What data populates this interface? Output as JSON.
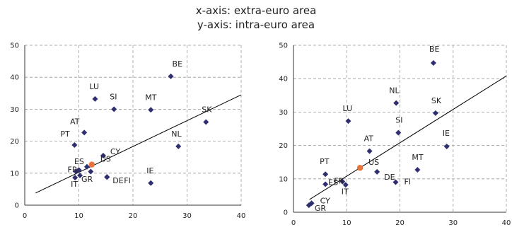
{
  "header": {
    "line1": "x-axis: extra-euro area",
    "line2": "y-axis: intra-euro area"
  },
  "colors": {
    "point": "#2f2f70",
    "us_point": "#e8743b",
    "grid": "#999999",
    "line": "#000000"
  },
  "chart_data": [
    {
      "type": "scatter",
      "xlim": [
        0,
        40
      ],
      "ylim": [
        0,
        50
      ],
      "xticks": [
        0,
        10,
        20,
        30,
        40
      ],
      "yticks": [
        0,
        10,
        20,
        30,
        40,
        50
      ],
      "grid": true,
      "trendline": {
        "x": [
          2,
          40
        ],
        "y": [
          3.8,
          34.5
        ]
      },
      "points": [
        {
          "label": "BE",
          "x": 27,
          "y": 40.3
        },
        {
          "label": "LU",
          "x": 13,
          "y": 33.2
        },
        {
          "label": "SI",
          "x": 16.5,
          "y": 30
        },
        {
          "label": "MT",
          "x": 23.3,
          "y": 29.8
        },
        {
          "label": "SK",
          "x": 33.5,
          "y": 26
        },
        {
          "label": "AT",
          "x": 11,
          "y": 22.7
        },
        {
          "label": "PT",
          "x": 9.2,
          "y": 18.8
        },
        {
          "label": "NL",
          "x": 28.4,
          "y": 18.4
        },
        {
          "label": "CY",
          "x": 14.5,
          "y": 15.5
        },
        {
          "label": "US",
          "x": 12.4,
          "y": 12.7,
          "highlight": true
        },
        {
          "label": "ES",
          "x": 11.5,
          "y": 12
        },
        {
          "label": "FR",
          "x": 10,
          "y": 11
        },
        {
          "label": "",
          "x": 9.5,
          "y": 10.5
        },
        {
          "label": "",
          "x": 12.2,
          "y": 10.5
        },
        {
          "label": "IT",
          "x": 9.3,
          "y": 8.6
        },
        {
          "label": "GR",
          "x": 10.2,
          "y": 9.3
        },
        {
          "label": "DE",
          "x": 15.2,
          "y": 8.8
        },
        {
          "label": "FI",
          "x": 15.2,
          "y": 8.8
        },
        {
          "label": "IE",
          "x": 23.3,
          "y": 6.9
        }
      ]
    },
    {
      "type": "scatter",
      "xlim": [
        0,
        40
      ],
      "ylim": [
        0,
        50
      ],
      "xticks": [
        0,
        10,
        20,
        30,
        40
      ],
      "yticks": [
        0,
        10,
        20,
        30,
        40,
        50
      ],
      "grid": true,
      "trendline": {
        "x": [
          3,
          40
        ],
        "y": [
          3.8,
          40.8
        ]
      },
      "points": [
        {
          "label": "BE",
          "x": 26.3,
          "y": 44.7
        },
        {
          "label": "NL",
          "x": 19.3,
          "y": 32.7
        },
        {
          "label": "SK",
          "x": 26.7,
          "y": 29.7
        },
        {
          "label": "LU",
          "x": 10.3,
          "y": 27.3
        },
        {
          "label": "SI",
          "x": 19.7,
          "y": 23.8
        },
        {
          "label": "IE",
          "x": 28.8,
          "y": 19.7
        },
        {
          "label": "AT",
          "x": 14.3,
          "y": 18.3
        },
        {
          "label": "US",
          "x": 12.5,
          "y": 13.3,
          "highlight": true
        },
        {
          "label": "MT",
          "x": 23.3,
          "y": 12.7
        },
        {
          "label": "DE",
          "x": 15.7,
          "y": 12.1
        },
        {
          "label": "PT",
          "x": 6,
          "y": 11.4
        },
        {
          "label": "ES",
          "x": 6,
          "y": 8.4
        },
        {
          "label": "FR",
          "x": 9.2,
          "y": 9.2
        },
        {
          "label": "IT",
          "x": 9.8,
          "y": 8.2
        },
        {
          "label": "FI",
          "x": 19.2,
          "y": 9
        },
        {
          "label": "CY",
          "x": 3.4,
          "y": 2.7
        },
        {
          "label": "GR",
          "x": 2.9,
          "y": 2.1
        }
      ]
    }
  ]
}
